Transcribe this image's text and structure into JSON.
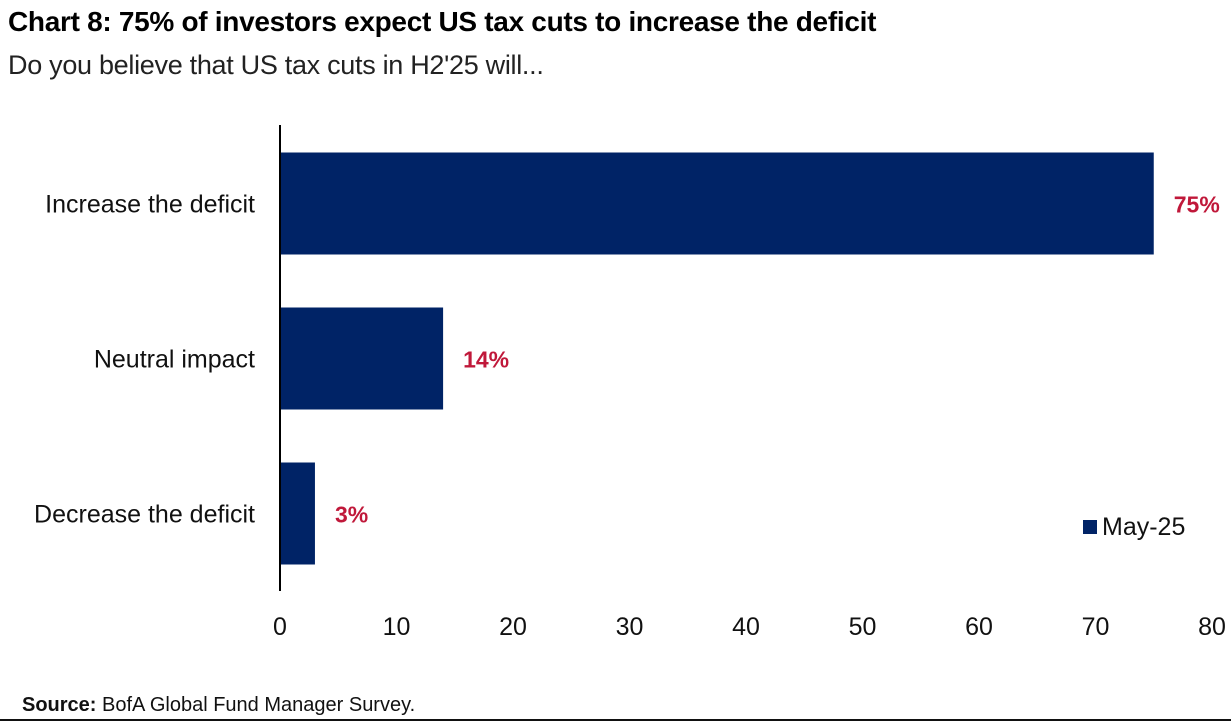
{
  "header": {
    "title": "Chart 8: 75% of investors expect US tax cuts to increase the deficit",
    "subtitle": "Do you believe that US tax cuts in H2'25 will..."
  },
  "chart_data": {
    "type": "bar",
    "orientation": "horizontal",
    "categories": [
      "Increase the deficit",
      "Neutral impact",
      "Decrease the deficit"
    ],
    "series": [
      {
        "name": "May-25",
        "values": [
          75,
          14,
          3
        ],
        "color": "#002366"
      }
    ],
    "data_labels": [
      "75%",
      "14%",
      "3%"
    ],
    "data_label_color": "#c0183a",
    "xlim": [
      0,
      80
    ],
    "xticks": [
      0,
      10,
      20,
      30,
      40,
      50,
      60,
      70,
      80
    ],
    "grid": false,
    "legend": "bottom-right"
  },
  "footer": {
    "source_label": "Source:",
    "source_text": "BofA Global Fund Manager Survey."
  }
}
